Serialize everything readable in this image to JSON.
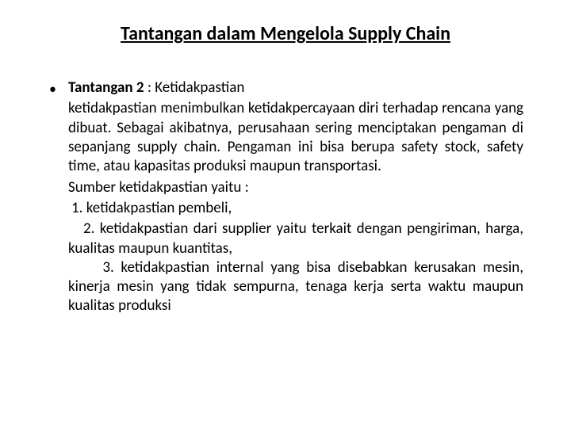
{
  "title": "Tantangan dalam Mengelola Supply Chain",
  "bullet": "•",
  "heading_bold": "Tantangan 2",
  "heading_rest": " : Ketidakpastian",
  "paragraph": "ketidakpastian menimbulkan ketidakpercayaan diri terhadap rencana yang dibuat. Sebagai akibatnya, perusahaan sering menciptakan pengaman di sepanjang supply chain. Pengaman ini bisa berupa safety stock, safety time, atau kapasitas produksi maupun transportasi.",
  "source_label": "Sumber ketidakpastian yaitu :",
  "item1": "1. ketidakpastian pembeli,",
  "item2": "   2. ketidakpastian dari supplier yaitu terkait dengan pengiriman, harga, kualitas maupun kuantitas,",
  "item3": "     3. ketidakpastian internal yang bisa disebabkan kerusakan mesin, kinerja mesin yang tidak sempurna, tenaga kerja serta waktu maupun kualitas produksi"
}
